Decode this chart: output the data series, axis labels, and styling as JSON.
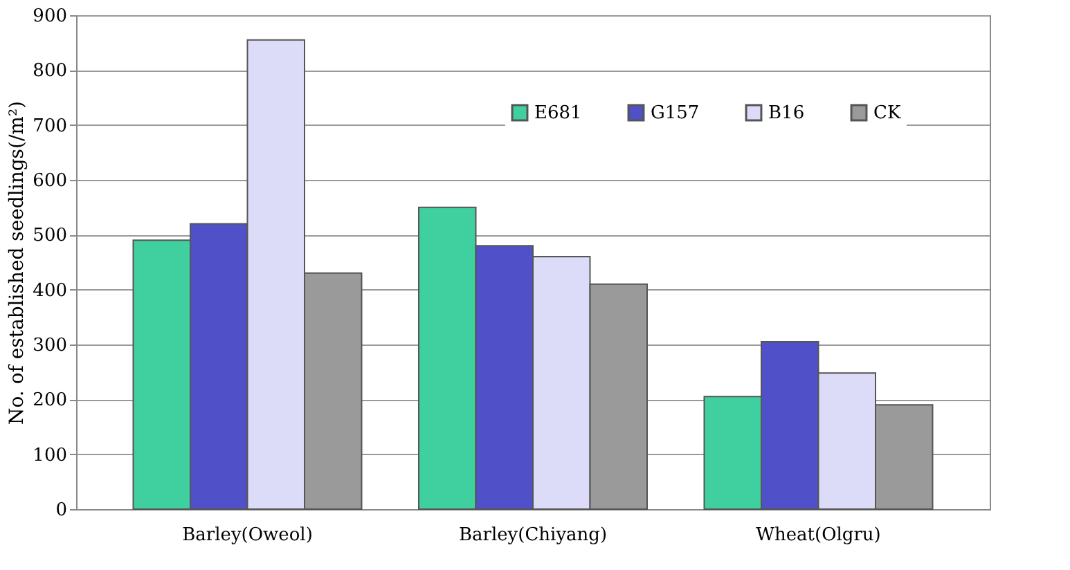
{
  "chart_data": {
    "type": "bar",
    "ylabel": "No. of established seedlings(/m²)",
    "categories": [
      "Barley(Oweol)",
      "Barley(Chiyang)",
      "Wheat(Olgru)"
    ],
    "series": [
      {
        "name": "E681",
        "color": "#40d0a0",
        "values": [
          490,
          550,
          205
        ]
      },
      {
        "name": "G157",
        "color": "#5050c8",
        "values": [
          520,
          480,
          305
        ]
      },
      {
        "name": "B16",
        "color": "#dcdcf8",
        "values": [
          855,
          460,
          248
        ]
      },
      {
        "name": "CK",
        "color": "#9a9a9a",
        "values": [
          430,
          410,
          190
        ]
      }
    ],
    "ylim": [
      0,
      900
    ],
    "yticks": [
      0,
      100,
      200,
      300,
      400,
      500,
      600,
      700,
      800,
      900
    ],
    "grid": "y",
    "legend": "top right"
  }
}
